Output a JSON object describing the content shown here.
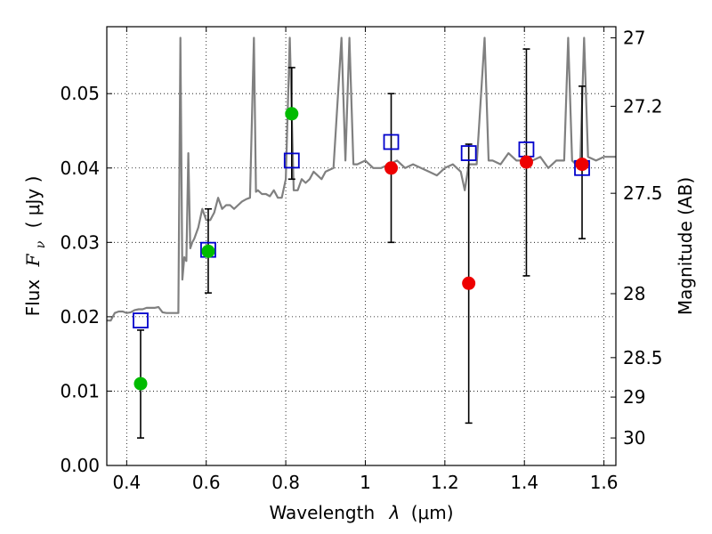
{
  "chart_data": {
    "type": "scatter",
    "title": "",
    "xlabel": {
      "prefix": "Wavelength",
      "symbol": "λ",
      "unit": "(μm)"
    },
    "ylabel": {
      "prefix": "Flux",
      "symbol": "F",
      "subscript": "ν",
      "unit": "( μJy )"
    },
    "y2label": "Magnitude (AB)",
    "xlim": [
      0.35,
      1.63
    ],
    "ylim": [
      0.0,
      0.059
    ],
    "grid": true,
    "x_ticks": [
      0.4,
      0.6,
      0.8,
      1.0,
      1.2,
      1.4,
      1.6
    ],
    "x_tick_labels": [
      "0.4",
      "0.6",
      "0.8",
      "1",
      "1.2",
      "1.4",
      "1.6"
    ],
    "y_ticks": [
      0.0,
      0.01,
      0.02,
      0.03,
      0.04,
      0.05
    ],
    "y_tick_labels": [
      "0.00",
      "0.01",
      "0.02",
      "0.03",
      "0.04",
      "0.05"
    ],
    "y2_ticks": [
      {
        "label": "27",
        "flux": 0.0575
      },
      {
        "label": "27.2",
        "flux": 0.0483
      },
      {
        "label": "27.5",
        "flux": 0.0366
      },
      {
        "label": "28",
        "flux": 0.0231
      },
      {
        "label": "28.5",
        "flux": 0.0145
      },
      {
        "label": "29",
        "flux": 0.0092
      },
      {
        "label": "30",
        "flux": 0.0037
      }
    ],
    "series": [
      {
        "kind": "line",
        "color": "#808080",
        "x": [
          0.35,
          0.36,
          0.37,
          0.38,
          0.39,
          0.4,
          0.41,
          0.42,
          0.43,
          0.44,
          0.45,
          0.46,
          0.47,
          0.48,
          0.49,
          0.5,
          0.51,
          0.52,
          0.53,
          0.535,
          0.54,
          0.545,
          0.55,
          0.555,
          0.56,
          0.565,
          0.57,
          0.58,
          0.59,
          0.6,
          0.61,
          0.62,
          0.63,
          0.64,
          0.65,
          0.66,
          0.67,
          0.68,
          0.69,
          0.7,
          0.71,
          0.72,
          0.725,
          0.73,
          0.74,
          0.75,
          0.76,
          0.77,
          0.78,
          0.79,
          0.8,
          0.81,
          0.82,
          0.83,
          0.84,
          0.85,
          0.86,
          0.87,
          0.88,
          0.89,
          0.9,
          0.92,
          0.94,
          0.95,
          0.96,
          0.97,
          0.98,
          1.0,
          1.02,
          1.04,
          1.06,
          1.08,
          1.1,
          1.12,
          1.14,
          1.16,
          1.18,
          1.2,
          1.22,
          1.24,
          1.25,
          1.26,
          1.28,
          1.3,
          1.31,
          1.32,
          1.34,
          1.36,
          1.38,
          1.4,
          1.42,
          1.44,
          1.46,
          1.48,
          1.5,
          1.51,
          1.52,
          1.54,
          1.55,
          1.56,
          1.58,
          1.6,
          1.63
        ],
        "y": [
          0.0195,
          0.0195,
          0.0205,
          0.0207,
          0.0207,
          0.0205,
          0.0206,
          0.0209,
          0.021,
          0.021,
          0.0212,
          0.0212,
          0.0212,
          0.0213,
          0.0206,
          0.0205,
          0.0205,
          0.0205,
          0.0205,
          0.0575,
          0.025,
          0.028,
          0.0275,
          0.042,
          0.0292,
          0.03,
          0.0305,
          0.032,
          0.0345,
          0.033,
          0.033,
          0.034,
          0.036,
          0.0345,
          0.035,
          0.035,
          0.0345,
          0.035,
          0.0355,
          0.0358,
          0.036,
          0.0575,
          0.0368,
          0.037,
          0.0365,
          0.0365,
          0.0362,
          0.037,
          0.036,
          0.036,
          0.0385,
          0.0575,
          0.037,
          0.037,
          0.0385,
          0.038,
          0.0385,
          0.0395,
          0.039,
          0.0385,
          0.0395,
          0.04,
          0.0575,
          0.041,
          0.0575,
          0.0405,
          0.0405,
          0.041,
          0.04,
          0.04,
          0.0405,
          0.041,
          0.04,
          0.0405,
          0.04,
          0.0395,
          0.039,
          0.04,
          0.0405,
          0.0395,
          0.037,
          0.0405,
          0.0405,
          0.0575,
          0.041,
          0.041,
          0.0405,
          0.042,
          0.041,
          0.041,
          0.041,
          0.0415,
          0.04,
          0.041,
          0.041,
          0.0575,
          0.041,
          0.04,
          0.0575,
          0.0415,
          0.041,
          0.0415,
          0.0415
        ]
      },
      {
        "kind": "open-square",
        "color": "#0000cc",
        "x": [
          0.435,
          0.605,
          0.815,
          1.065,
          1.26,
          1.405,
          1.545
        ],
        "y": [
          0.0195,
          0.029,
          0.041,
          0.0435,
          0.042,
          0.0425,
          0.04
        ]
      },
      {
        "kind": "filled-circle",
        "color": "#00bb00",
        "x": [
          0.435,
          0.605,
          0.815
        ],
        "y": [
          0.011,
          0.0288,
          0.0473
        ],
        "err_low": [
          0.0037,
          0.0232,
          0.0385
        ],
        "err_high": [
          0.0182,
          0.0345,
          0.0535
        ]
      },
      {
        "kind": "filled-circle",
        "color": "#ee0000",
        "x": [
          1.065,
          1.26,
          1.405,
          1.545
        ],
        "y": [
          0.04,
          0.0245,
          0.0408,
          0.0405
        ],
        "err_low": [
          0.03,
          0.0057,
          0.0255,
          0.0305
        ],
        "err_high": [
          0.05,
          0.0432,
          0.056,
          0.051
        ]
      }
    ]
  }
}
